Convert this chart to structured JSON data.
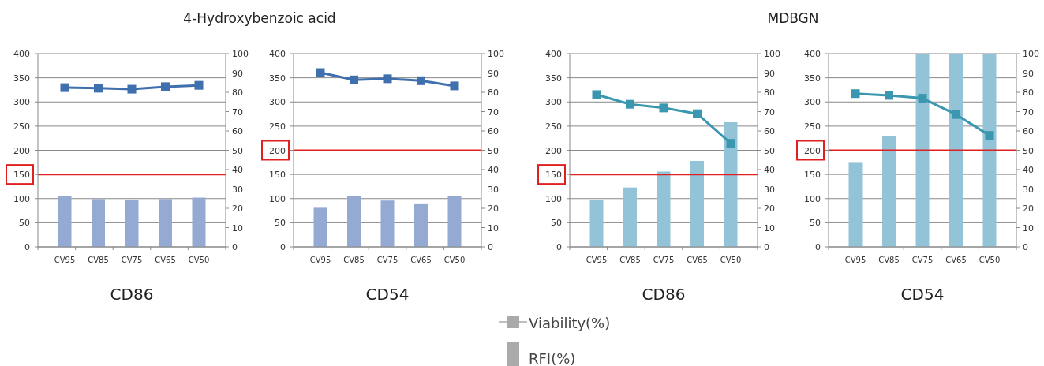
{
  "chart_data": [
    {
      "type": "bar",
      "title": "4-Hydroxybenzoic acid",
      "xlabel": "CD86",
      "categories": [
        "CV95",
        "CV85",
        "CV75",
        "CV65",
        "CV50"
      ],
      "ylim": [
        0,
        400
      ],
      "yticks": [
        0,
        50,
        100,
        150,
        200,
        250,
        300,
        350,
        400
      ],
      "y2lim": [
        0,
        100
      ],
      "y2ticks": [
        0,
        10,
        20,
        30,
        40,
        50,
        60,
        70,
        80,
        90,
        100
      ],
      "grid": "y",
      "legend": "bottom",
      "marker": "square",
      "ref_lines": [
        {
          "axis": "y",
          "value": 150,
          "color": "#e02020"
        }
      ],
      "series": [
        {
          "name": "RFI(%)",
          "color": "#95aad3",
          "values": [
            105,
            99,
            98,
            99,
            102
          ]
        },
        {
          "name": "Viability(%)",
          "type": "line",
          "axis": "y2",
          "color": "#3f6fad",
          "values": [
            82.4,
            82.1,
            81.6,
            82.9,
            83.6
          ]
        }
      ]
    },
    {
      "type": "bar",
      "xlabel": "CD54",
      "categories": [
        "CV95",
        "CV85",
        "CV75",
        "CV65",
        "CV50"
      ],
      "ylim": [
        0,
        400
      ],
      "yticks": [
        0,
        50,
        100,
        150,
        200,
        250,
        300,
        350,
        400
      ],
      "y2lim": [
        0,
        100
      ],
      "y2ticks": [
        0,
        10,
        20,
        30,
        40,
        50,
        60,
        70,
        80,
        90,
        100
      ],
      "grid": "y",
      "marker": "square",
      "ref_lines": [
        {
          "axis": "y",
          "value": 200,
          "color": "#e02020"
        }
      ],
      "series": [
        {
          "color": "#95aad3",
          "values": [
            81,
            105,
            96,
            90,
            106
          ]
        },
        {
          "type": "line",
          "axis": "y2",
          "color": "#3f6fad",
          "values": [
            90.2,
            86.4,
            87,
            86,
            83.3
          ]
        }
      ]
    },
    {
      "type": "bar",
      "title": "MDBGN",
      "xlabel": "CD86",
      "categories": [
        "CV95",
        "CV85",
        "CV75",
        "CV65",
        "CV50"
      ],
      "ylim": [
        0,
        400
      ],
      "yticks": [
        0,
        50,
        100,
        150,
        200,
        250,
        300,
        350,
        400
      ],
      "y2lim": [
        0,
        100
      ],
      "y2ticks": [
        0,
        10,
        20,
        30,
        40,
        50,
        60,
        70,
        80,
        90,
        100
      ],
      "grid": "y",
      "marker": "square",
      "ref_lines": [
        {
          "axis": "y",
          "value": 150,
          "color": "#e02020"
        }
      ],
      "series": [
        {
          "color": "#92c3d6",
          "values": [
            97,
            123,
            156,
            178,
            258
          ]
        },
        {
          "type": "line",
          "axis": "y2",
          "color": "#3b97b0",
          "values": [
            78.8,
            73.8,
            71.9,
            68.9,
            53.6
          ]
        }
      ]
    },
    {
      "type": "bar",
      "xlabel": "CD54",
      "categories": [
        "CV95",
        "CV85",
        "CV75",
        "CV65",
        "CV50"
      ],
      "ylim": [
        0,
        400
      ],
      "yticks": [
        0,
        50,
        100,
        150,
        200,
        250,
        300,
        350,
        400
      ],
      "y2lim": [
        0,
        100
      ],
      "y2ticks": [
        0,
        10,
        20,
        30,
        40,
        50,
        60,
        70,
        80,
        90,
        100
      ],
      "grid": "y",
      "marker": "square",
      "ref_lines": [
        {
          "axis": "y",
          "value": 200,
          "color": "#e02020"
        }
      ],
      "series": [
        {
          "color": "#92c3d6",
          "values": [
            174,
            229,
            400,
            400,
            400
          ]
        },
        {
          "type": "line",
          "axis": "y2",
          "color": "#3b97b0",
          "values": [
            79.3,
            78.4,
            76.9,
            68.5,
            57.7
          ]
        }
      ]
    }
  ]
}
